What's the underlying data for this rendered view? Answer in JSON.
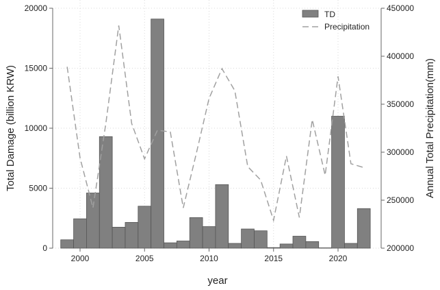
{
  "chart_data": {
    "type": "bar",
    "title": "",
    "xlabel": "year",
    "ylabel": "Total Damage (billion KRW)",
    "y2label": "Annual Total Precipitation(mm)",
    "x": [
      1999,
      2000,
      2001,
      2002,
      2003,
      2004,
      2005,
      2006,
      2007,
      2008,
      2009,
      2010,
      2011,
      2012,
      2013,
      2014,
      2015,
      2016,
      2017,
      2018,
      2019,
      2020,
      2021,
      2022
    ],
    "series": [
      {
        "name": "TD",
        "type": "bar",
        "axis": "left",
        "color": "#808080",
        "values": [
          700,
          2450,
          4600,
          9300,
          1750,
          2150,
          3500,
          19100,
          450,
          600,
          2550,
          1800,
          5300,
          400,
          1600,
          1450,
          50,
          350,
          1000,
          550,
          30,
          11000,
          400,
          3300
        ]
      },
      {
        "name": "Precipitation",
        "type": "line",
        "style": "dashed",
        "axis": "right",
        "color": "#a0a0a0",
        "values": [
          389000,
          294000,
          242000,
          330000,
          432000,
          330000,
          293000,
          323000,
          321000,
          242000,
          298000,
          356000,
          387000,
          364000,
          285000,
          271000,
          229000,
          296000,
          232000,
          334000,
          276000,
          379000,
          288000,
          284000
        ]
      }
    ],
    "ylim": [
      0,
      20000
    ],
    "y2lim": [
      200000,
      450000
    ],
    "xlim": [
      1998.5,
      2023.3
    ],
    "xticks": [
      2000,
      2005,
      2010,
      2015,
      2020
    ],
    "yticks": [
      0,
      5000,
      10000,
      15000,
      20000
    ],
    "y2ticks": [
      200000,
      250000,
      300000,
      350000,
      400000,
      450000
    ],
    "grid": true,
    "legend": "top-right"
  }
}
